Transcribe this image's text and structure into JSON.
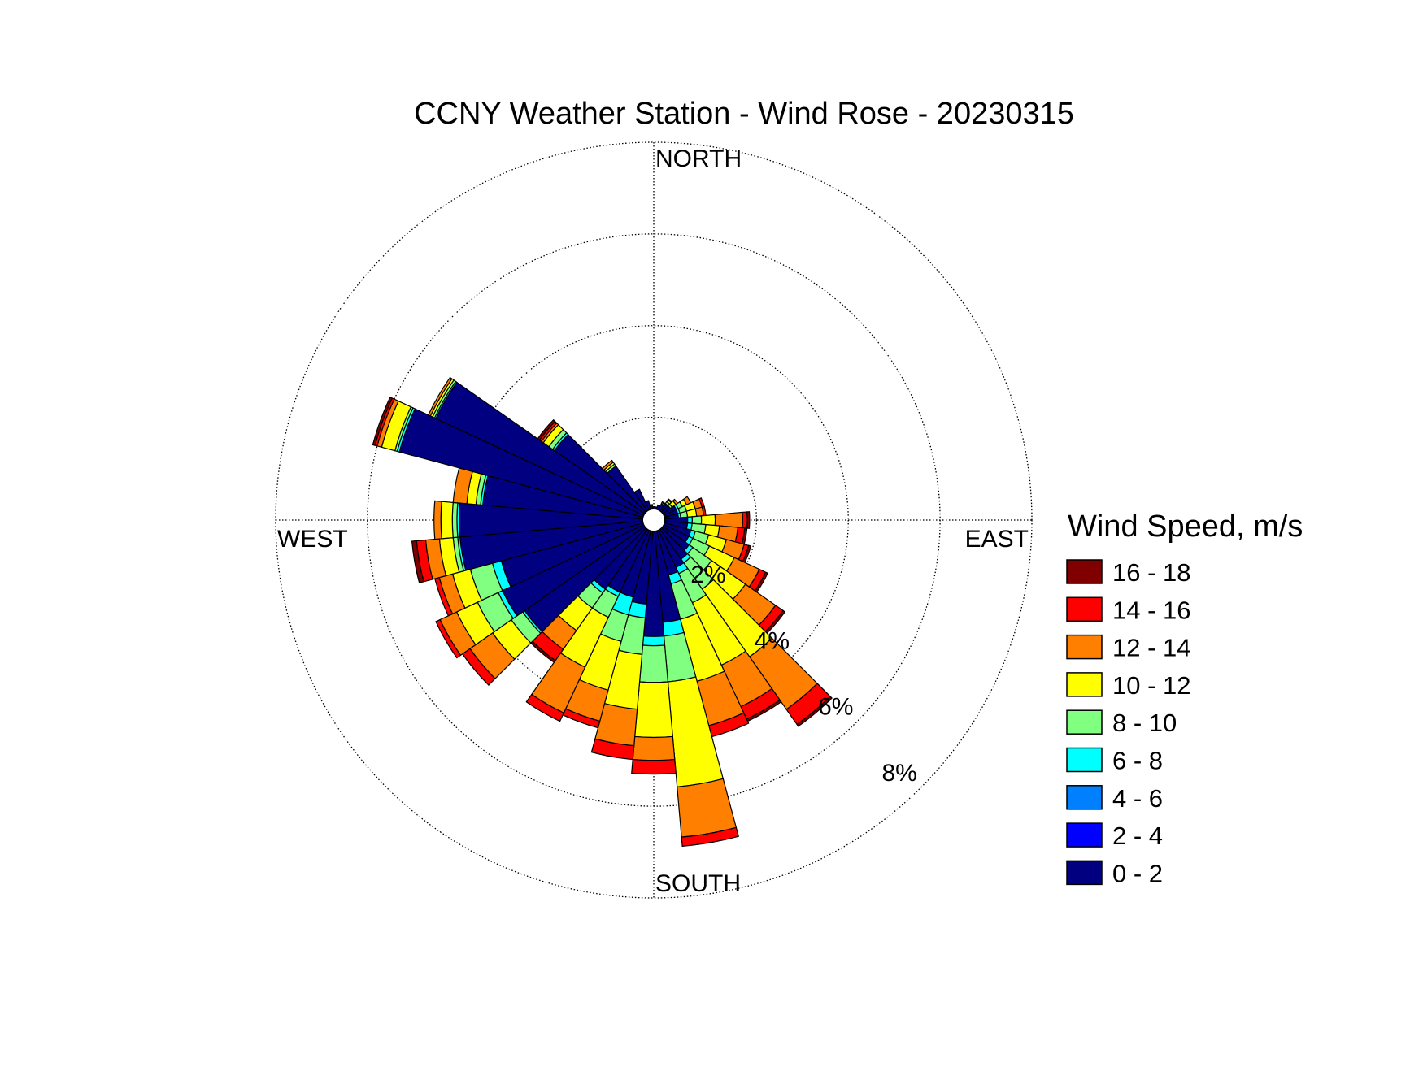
{
  "chart_data": {
    "type": "windrose",
    "title": "CCNY Weather Station - Wind Rose - 20230315",
    "direction_labels": {
      "north": "NORTH",
      "east": "EAST",
      "south": "SOUTH",
      "west": "WEST"
    },
    "legend_title": "Wind Speed, m/s",
    "x": [
      0,
      10,
      20,
      30,
      40,
      50,
      60,
      70,
      80,
      90,
      100,
      110,
      120,
      130,
      140,
      150,
      160,
      170,
      180,
      190,
      200,
      210,
      220,
      230,
      240,
      250,
      260,
      270,
      280,
      290,
      300,
      310,
      320,
      330,
      340,
      350
    ],
    "xlim": [
      0,
      360
    ],
    "ylim": [
      0,
      8
    ],
    "yticks": [
      {
        "value": 2,
        "label": "2%"
      },
      {
        "value": 4,
        "label": "4%"
      },
      {
        "value": 6,
        "label": "6%"
      },
      {
        "value": 8,
        "label": "8%"
      }
    ],
    "grid": true,
    "series": [
      {
        "name": "0 - 2",
        "color": "#000080",
        "values": [
          0.05,
          0.05,
          0.1,
          0.15,
          0.2,
          0.2,
          0.3,
          0.3,
          0.3,
          0.5,
          0.5,
          0.6,
          0.6,
          0.7,
          0.8,
          0.9,
          1.0,
          2.0,
          2.3,
          1.6,
          1.5,
          1.5,
          1.6,
          3.2,
          3.4,
          3.2,
          4.0,
          4.0,
          3.5,
          5.5,
          5.0,
          2.4,
          1.2,
          0.5,
          0.2,
          0.1
        ]
      },
      {
        "name": "2 - 4",
        "color": "#0000ff",
        "values": [
          0,
          0,
          0,
          0,
          0,
          0,
          0,
          0,
          0,
          0,
          0,
          0,
          0,
          0,
          0,
          0,
          0,
          0,
          0,
          0,
          0,
          0,
          0,
          0,
          0,
          0,
          0,
          0,
          0,
          0,
          0,
          0,
          0,
          0,
          0,
          0
        ]
      },
      {
        "name": "4 - 6",
        "color": "#0080ff",
        "values": [
          0,
          0,
          0,
          0,
          0,
          0,
          0,
          0,
          0,
          0,
          0,
          0,
          0,
          0,
          0,
          0,
          0,
          0,
          0,
          0,
          0,
          0,
          0,
          0,
          0,
          0,
          0,
          0,
          0,
          0,
          0,
          0,
          0,
          0,
          0,
          0
        ]
      },
      {
        "name": "6 - 8",
        "color": "#00ffff",
        "values": [
          0,
          0,
          0,
          0,
          0,
          0,
          0.05,
          0.05,
          0.05,
          0.1,
          0.1,
          0.1,
          0.1,
          0.1,
          0.1,
          0.15,
          0.2,
          0.3,
          0.2,
          0.3,
          0.4,
          0.1,
          0.1,
          0.05,
          0.1,
          0.2,
          0.05,
          0.05,
          0.05,
          0.05,
          0.03,
          0.05,
          0,
          0,
          0,
          0
        ]
      },
      {
        "name": "8 - 10",
        "color": "#80ff80",
        "values": [
          0,
          0,
          0,
          0.03,
          0.05,
          0.05,
          0.1,
          0.15,
          0.15,
          0.2,
          0.3,
          0.3,
          0.4,
          0.5,
          0.7,
          0.7,
          0.8,
          1.0,
          0.8,
          0.8,
          0.6,
          0.5,
          0.4,
          0.3,
          0.5,
          0.5,
          0.1,
          0.1,
          0.1,
          0.05,
          0.05,
          0.1,
          0.05,
          0,
          0,
          0
        ]
      },
      {
        "name": "10 - 12",
        "color": "#ffff00",
        "values": [
          0,
          0,
          0,
          0.02,
          0.05,
          0.1,
          0.1,
          0.2,
          0.2,
          0.3,
          0.3,
          0.4,
          0.6,
          0.9,
          1.8,
          1.5,
          1.4,
          2.3,
          1.2,
          1.2,
          1.1,
          1.2,
          0.6,
          0.5,
          0.5,
          0.4,
          0.3,
          0.25,
          0.2,
          0.3,
          0.05,
          0.15,
          0.05,
          0,
          0,
          0
        ]
      },
      {
        "name": "12 - 14",
        "color": "#ff8000",
        "values": [
          0,
          0,
          0,
          0,
          0.02,
          0.05,
          0.1,
          0.15,
          0.15,
          0.6,
          0.4,
          0.4,
          0.6,
          0.8,
          1.4,
          1.0,
          1.0,
          1.1,
          0.5,
          0.8,
          0.7,
          1.1,
          0.5,
          0.6,
          0.4,
          0.3,
          0.3,
          0.15,
          0.3,
          0.1,
          0.05,
          0.05,
          0.05,
          0,
          0,
          0
        ]
      },
      {
        "name": "14 - 16",
        "color": "#ff0000",
        "values": [
          0,
          0,
          0,
          0,
          0,
          0,
          0,
          0.05,
          0.05,
          0.1,
          0.15,
          0.1,
          0.15,
          0.2,
          0.4,
          0.3,
          0.25,
          0.2,
          0.3,
          0.3,
          0.15,
          0.2,
          0.3,
          0.2,
          0.1,
          0.1,
          0.2,
          0,
          0,
          0.05,
          0,
          0.05,
          0,
          0,
          0,
          0
        ]
      },
      {
        "name": "16 - 18",
        "color": "#800000",
        "values": [
          0,
          0,
          0,
          0,
          0,
          0,
          0,
          0,
          0,
          0.05,
          0.05,
          0.05,
          0.05,
          0.05,
          0.05,
          0.05,
          0,
          0,
          0,
          0,
          0,
          0,
          0.05,
          0,
          0,
          0,
          0.1,
          0,
          0,
          0.05,
          0,
          0.05,
          0,
          0,
          0,
          0
        ]
      }
    ]
  }
}
